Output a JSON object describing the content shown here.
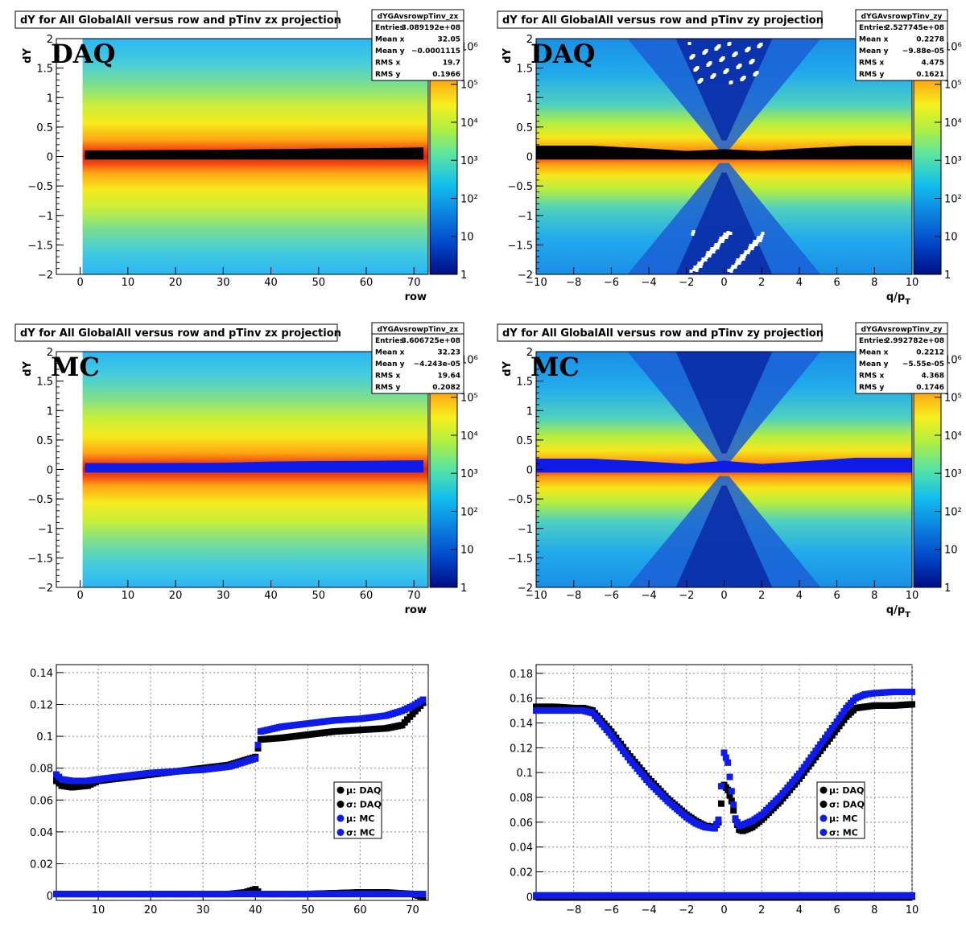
{
  "colors": {
    "daq": "#000000",
    "mc": "#0f1be8"
  },
  "panels": [
    {
      "title": "dY for All GlobalAll versus row and pTinv zx projection",
      "label": "DAQ",
      "ylabel": "dY",
      "xlabel": "row",
      "xticks": [
        "0",
        "10",
        "20",
        "30",
        "40",
        "50",
        "60",
        "70"
      ],
      "yticks": [
        "−2",
        "−1.5",
        "−1",
        "−0.5",
        "0",
        "0.5",
        "1",
        "1.5",
        "2"
      ],
      "zticks": [
        "1",
        "10",
        "10²",
        "10³",
        "10⁴",
        "10⁵",
        "10⁶"
      ],
      "stats": {
        "name": "dYGAvsrowpTinv_zx",
        "rows": [
          [
            "Entries",
            "3.089192e+08"
          ],
          [
            "Mean x",
            "32.05"
          ],
          [
            "Mean y",
            "−0.0001115"
          ],
          [
            "RMS x",
            "19.7"
          ],
          [
            "RMS y",
            "0.1966"
          ]
        ]
      }
    },
    {
      "title": "dY for All GlobalAll versus row and pTinv zy projection",
      "label": "DAQ",
      "ylabel": "dY",
      "xlabel": "q/p_T",
      "xticks": [
        "−10",
        "−8",
        "−6",
        "−4",
        "−2",
        "0",
        "2",
        "4",
        "6",
        "8",
        "10"
      ],
      "yticks": [
        "−2",
        "−1.5",
        "−1",
        "−0.5",
        "0",
        "0.5",
        "1",
        "1.5",
        "2"
      ],
      "zticks": [
        "1",
        "10",
        "10²",
        "10³",
        "10⁴",
        "10⁵",
        "10⁶"
      ],
      "stats": {
        "name": "dYGAvsrowpTinv_zy",
        "rows": [
          [
            "Entries",
            "2.527745e+08"
          ],
          [
            "Mean x",
            "0.2278"
          ],
          [
            "Mean y",
            "−9.88e-05"
          ],
          [
            "RMS x",
            "4.475"
          ],
          [
            "RMS y",
            "0.1621"
          ]
        ]
      }
    },
    {
      "title": "dY for All GlobalAll versus row and pTinv zx projection",
      "label": "MC",
      "ylabel": "dY",
      "xlabel": "row",
      "xticks": [
        "0",
        "10",
        "20",
        "30",
        "40",
        "50",
        "60",
        "70"
      ],
      "yticks": [
        "−2",
        "−1.5",
        "−1",
        "−0.5",
        "0",
        "0.5",
        "1",
        "1.5",
        "2"
      ],
      "zticks": [
        "1",
        "10",
        "10²",
        "10³",
        "10⁴",
        "10⁵",
        "10⁶"
      ],
      "stats": {
        "name": "dYGAvsrowpTinv_zx",
        "rows": [
          [
            "Entries",
            "3.606725e+08"
          ],
          [
            "Mean x",
            "32.23"
          ],
          [
            "Mean y",
            "−4.243e-05"
          ],
          [
            "RMS x",
            "19.64"
          ],
          [
            "RMS y",
            "0.2082"
          ]
        ]
      }
    },
    {
      "title": "dY for All GlobalAll versus row and pTinv zy projection",
      "label": "MC",
      "ylabel": "dY",
      "xlabel": "q/p_T",
      "xticks": [
        "−10",
        "−8",
        "−6",
        "−4",
        "−2",
        "0",
        "2",
        "4",
        "6",
        "8",
        "10"
      ],
      "yticks": [
        "−2",
        "−1.5",
        "−1",
        "−0.5",
        "0",
        "0.5",
        "1",
        "1.5",
        "2"
      ],
      "zticks": [
        "1",
        "10",
        "10²",
        "10³",
        "10⁴",
        "10⁵",
        "10⁶"
      ],
      "stats": {
        "name": "dYGAvsrowpTinv_zy",
        "rows": [
          [
            "Entries",
            "2.992782e+08"
          ],
          [
            "Mean x",
            "0.2212"
          ],
          [
            "Mean y",
            "−5.55e-05"
          ],
          [
            "RMS x",
            "4.368"
          ],
          [
            "RMS y",
            "0.1746"
          ]
        ]
      }
    }
  ],
  "legend": [
    {
      "label": "μ: DAQ",
      "series": "daq"
    },
    {
      "label": "σ: DAQ",
      "series": "daq"
    },
    {
      "label": "μ: MC",
      "series": "mc"
    },
    {
      "label": "σ: MC",
      "series": "mc"
    }
  ],
  "chart_data": [
    {
      "type": "heatmap",
      "title": "dY for All GlobalAll versus row and pTinv zx projection",
      "label": "DAQ",
      "xlabel": "row",
      "ylabel": "dY",
      "xlim": [
        -5,
        73
      ],
      "ylim": [
        -2,
        2
      ],
      "zlim": [
        1,
        1000000
      ],
      "zscale": "log",
      "overlay_series": {
        "name": "DAQ",
        "x": [
          1,
          10,
          20,
          30,
          40,
          50,
          60,
          72
        ],
        "y": [
          0.07,
          0.072,
          0.076,
          0.08,
          0.09,
          0.1,
          0.105,
          0.12
        ]
      }
    },
    {
      "type": "heatmap",
      "title": "dY for All GlobalAll versus row and pTinv zy projection",
      "label": "DAQ",
      "xlabel": "q/p_T",
      "ylabel": "dY",
      "xlim": [
        -10,
        10
      ],
      "ylim": [
        -2,
        2
      ],
      "zlim": [
        1,
        1000000
      ],
      "zscale": "log",
      "overlay_series": {
        "name": "DAQ",
        "x": [
          -10,
          -7,
          -4,
          -2,
          0,
          2,
          4,
          7,
          10
        ],
        "y": [
          0.15,
          0.15,
          0.1,
          0.06,
          0.09,
          0.06,
          0.1,
          0.15,
          0.15
        ]
      }
    },
    {
      "type": "heatmap",
      "title": "dY for All GlobalAll versus row and pTinv zx projection",
      "label": "MC",
      "xlabel": "row",
      "ylabel": "dY",
      "xlim": [
        -5,
        73
      ],
      "ylim": [
        -2,
        2
      ],
      "zlim": [
        1,
        1000000
      ],
      "zscale": "log",
      "overlay_series": {
        "name": "MC",
        "x": [
          1,
          10,
          20,
          30,
          40,
          50,
          60,
          72
        ],
        "y": [
          0.075,
          0.074,
          0.077,
          0.08,
          0.1,
          0.11,
          0.112,
          0.123
        ]
      }
    },
    {
      "type": "heatmap",
      "title": "dY for All GlobalAll versus row and pTinv zy projection",
      "label": "MC",
      "xlabel": "q/p_T",
      "ylabel": "dY",
      "xlim": [
        -10,
        10
      ],
      "ylim": [
        -2,
        2
      ],
      "zlim": [
        1,
        1000000
      ],
      "zscale": "log",
      "overlay_series": {
        "name": "MC",
        "x": [
          -10,
          -7,
          -4,
          -2,
          0,
          2,
          4,
          7,
          10
        ],
        "y": [
          0.15,
          0.15,
          0.1,
          0.06,
          0.115,
          0.06,
          0.1,
          0.165,
          0.165
        ]
      }
    },
    {
      "type": "scatter",
      "xlim": [
        2,
        73
      ],
      "ylim": [
        -0.003,
        0.145
      ],
      "xticks": [
        10,
        20,
        30,
        40,
        50,
        60,
        70
      ],
      "yticks": [
        0,
        0.02,
        0.04,
        0.06,
        0.08,
        0.1,
        0.12,
        0.14
      ],
      "legend": "bottom-right",
      "series": [
        {
          "name": "σ: DAQ",
          "x": [
            2,
            3,
            5,
            8,
            10,
            15,
            20,
            25,
            30,
            35,
            38,
            39,
            40,
            41,
            45,
            50,
            55,
            60,
            65,
            68,
            70,
            72
          ],
          "y": [
            0.072,
            0.069,
            0.068,
            0.069,
            0.072,
            0.074,
            0.076,
            0.078,
            0.08,
            0.082,
            0.085,
            0.086,
            0.087,
            0.098,
            0.099,
            0.101,
            0.103,
            0.104,
            0.105,
            0.107,
            0.114,
            0.121
          ]
        },
        {
          "name": "μ: DAQ",
          "x": [
            2,
            10,
            20,
            30,
            35,
            38,
            40,
            41,
            50,
            60,
            65,
            70,
            72
          ],
          "y": [
            0.001,
            0.001,
            0.001,
            0.001,
            0.001,
            0.002,
            0.004,
            0.001,
            0.001,
            0.002,
            0.002,
            0.001,
            -0.001
          ]
        },
        {
          "name": "σ: MC",
          "x": [
            2,
            3,
            5,
            8,
            10,
            15,
            20,
            25,
            30,
            35,
            38,
            39,
            40,
            41,
            45,
            50,
            55,
            60,
            65,
            68,
            70,
            72
          ],
          "y": [
            0.076,
            0.073,
            0.072,
            0.072,
            0.073,
            0.075,
            0.077,
            0.078,
            0.079,
            0.081,
            0.084,
            0.085,
            0.086,
            0.103,
            0.106,
            0.108,
            0.11,
            0.111,
            0.113,
            0.116,
            0.119,
            0.123
          ]
        },
        {
          "name": "μ: MC",
          "x": [
            2,
            10,
            20,
            30,
            40,
            50,
            60,
            70,
            72
          ],
          "y": [
            0.001,
            0.001,
            0.001,
            0.001,
            0.001,
            0.001,
            0.001,
            0.001,
            0.001
          ]
        }
      ]
    },
    {
      "type": "scatter",
      "xlim": [
        -10,
        10
      ],
      "ylim": [
        -0.003,
        0.187
      ],
      "xticks": [
        -8,
        -6,
        -4,
        -2,
        0,
        2,
        4,
        6,
        8,
        10
      ],
      "yticks": [
        0,
        0.02,
        0.04,
        0.06,
        0.08,
        0.1,
        0.12,
        0.14,
        0.16,
        0.18
      ],
      "legend": "bottom-right",
      "series": [
        {
          "name": "σ: DAQ",
          "x": [
            -10,
            -9,
            -8,
            -7.5,
            -7,
            -6,
            -5,
            -4,
            -3,
            -2,
            -1.5,
            -1,
            -0.5,
            -0.3,
            0,
            0.2,
            0.4,
            0.6,
            0.8,
            1,
            1.5,
            2,
            3,
            4,
            5,
            6,
            6.5,
            7,
            8,
            9,
            10
          ],
          "y": [
            0.153,
            0.153,
            0.152,
            0.152,
            0.15,
            0.133,
            0.113,
            0.095,
            0.079,
            0.066,
            0.061,
            0.057,
            0.056,
            0.06,
            0.09,
            0.086,
            0.077,
            0.062,
            0.054,
            0.053,
            0.056,
            0.062,
            0.077,
            0.095,
            0.115,
            0.135,
            0.145,
            0.152,
            0.154,
            0.154,
            0.155
          ]
        },
        {
          "name": "μ: DAQ",
          "x": [
            -10,
            -5,
            0,
            5,
            10
          ],
          "y": [
            0.0,
            0.0,
            0.0,
            0.0,
            0.0
          ]
        },
        {
          "name": "σ: MC",
          "x": [
            -10,
            -9,
            -8,
            -7.5,
            -7,
            -6,
            -5,
            -4,
            -3,
            -2,
            -1.5,
            -1,
            -0.5,
            -0.3,
            0,
            0.2,
            0.4,
            0.6,
            0.8,
            1,
            1.5,
            2,
            3,
            4,
            5,
            6,
            6.5,
            7,
            7.5,
            8,
            9,
            10
          ],
          "y": [
            0.15,
            0.15,
            0.15,
            0.15,
            0.148,
            0.13,
            0.11,
            0.092,
            0.077,
            0.064,
            0.059,
            0.056,
            0.055,
            0.062,
            0.116,
            0.108,
            0.085,
            0.063,
            0.057,
            0.058,
            0.061,
            0.066,
            0.081,
            0.099,
            0.12,
            0.141,
            0.152,
            0.16,
            0.163,
            0.164,
            0.165,
            0.165
          ]
        },
        {
          "name": "μ: MC",
          "x": [
            -10,
            -5,
            0,
            5,
            10
          ],
          "y": [
            0.001,
            0.001,
            0.001,
            0.001,
            0.001
          ]
        }
      ]
    }
  ]
}
